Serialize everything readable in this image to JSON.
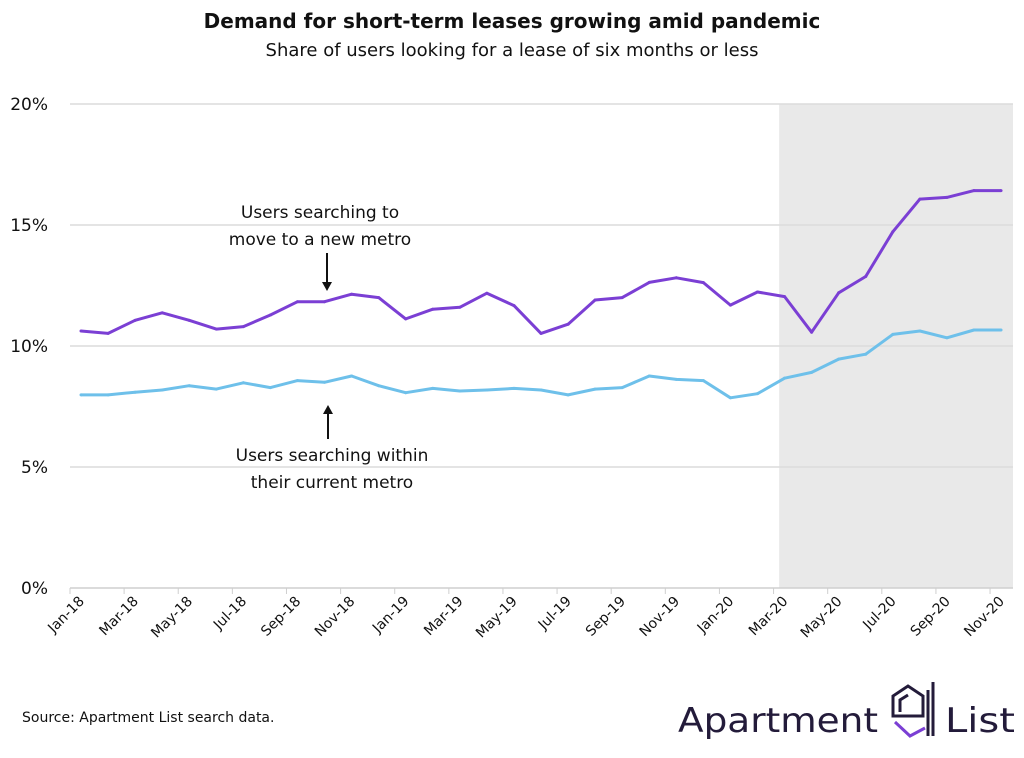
{
  "chart_data": {
    "type": "line",
    "title": "Demand for short-term leases growing amid pandemic",
    "subtitle": "Share of users looking for a lease of six months or less",
    "xlabel": "",
    "ylabel": "",
    "x": [
      "Jan-18",
      "Feb-18",
      "Mar-18",
      "Apr-18",
      "May-18",
      "Jun-18",
      "Jul-18",
      "Aug-18",
      "Sep-18",
      "Oct-18",
      "Nov-18",
      "Dec-18",
      "Jan-19",
      "Feb-19",
      "Mar-19",
      "Apr-19",
      "May-19",
      "Jun-19",
      "Jul-19",
      "Aug-19",
      "Sep-19",
      "Oct-19",
      "Nov-19",
      "Dec-19",
      "Jan-20",
      "Feb-20",
      "Mar-20",
      "Apr-20",
      "May-20",
      "Jun-20",
      "Jul-20",
      "Aug-20",
      "Sep-20",
      "Oct-20",
      "Nov-20"
    ],
    "x_tick_labels": [
      "Jan-18",
      "Mar-18",
      "May-18",
      "Jul-18",
      "Sep-18",
      "Nov-18",
      "Jan-19",
      "Mar-19",
      "May-19",
      "Jul-19",
      "Sep-19",
      "Nov-19",
      "Jan-20",
      "Mar-20",
      "May-20",
      "Jul-20",
      "Sep-20",
      "Nov-20"
    ],
    "ylim": [
      0,
      20
    ],
    "y_ticks": [
      0,
      5,
      10,
      15,
      20
    ],
    "y_tick_labels": [
      "0%",
      "5%",
      "10%",
      "15%",
      "20%"
    ],
    "grid": "horizontal",
    "shaded_region": {
      "from": "Feb-20",
      "to": "Nov-20",
      "color": "#e9e9e9"
    },
    "series": [
      {
        "annotation": [
          "Users searching to",
          "move to a new metro"
        ],
        "color": "#7b3fd4",
        "values": [
          10.62,
          10.52,
          11.06,
          11.37,
          11.06,
          10.7,
          10.8,
          11.28,
          11.83,
          11.83,
          12.14,
          12.0,
          11.12,
          11.52,
          11.6,
          12.18,
          11.67,
          10.52,
          10.9,
          11.9,
          12.0,
          12.63,
          12.82,
          12.62,
          11.69,
          12.23,
          12.04,
          10.57,
          12.2,
          12.87,
          14.72,
          16.07,
          16.14,
          16.42,
          16.42
        ]
      },
      {
        "annotation": [
          "Users searching within",
          "their current metro"
        ],
        "color": "#6ec0ea",
        "values": [
          7.98,
          7.98,
          8.09,
          8.18,
          8.36,
          8.22,
          8.48,
          8.28,
          8.57,
          8.5,
          8.76,
          8.36,
          8.07,
          8.25,
          8.14,
          8.18,
          8.25,
          8.18,
          7.98,
          8.22,
          8.28,
          8.76,
          8.62,
          8.57,
          7.86,
          8.03,
          8.67,
          8.91,
          9.46,
          9.66,
          10.48,
          10.62,
          10.34,
          10.66,
          10.66
        ]
      }
    ]
  },
  "footer": {
    "source": "Source: Apartment List search data.",
    "logo_text": "Apartment List",
    "logo_color": "#231b3a"
  }
}
